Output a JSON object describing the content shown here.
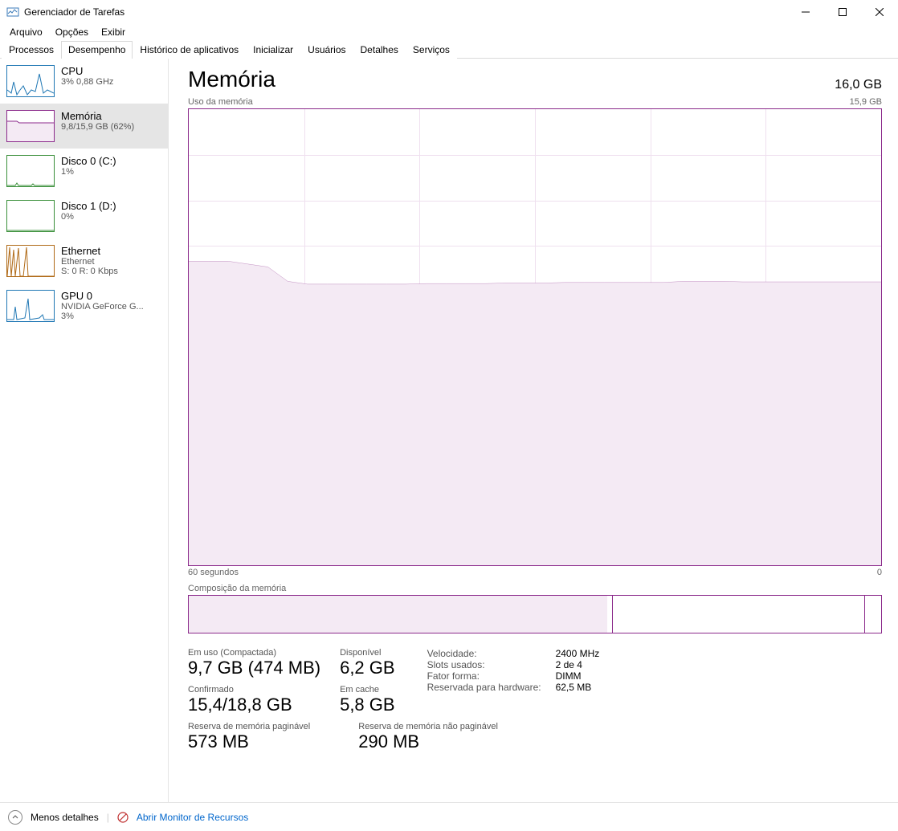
{
  "window": {
    "title": "Gerenciador de Tarefas"
  },
  "menu": {
    "file": "Arquivo",
    "options": "Opções",
    "view": "Exibir"
  },
  "tabs": {
    "processes": "Processos",
    "performance": "Desempenho",
    "app_history": "Histórico de aplicativos",
    "startup": "Inicializar",
    "users": "Usuários",
    "details": "Detalhes",
    "services": "Serviços"
  },
  "sidebar": [
    {
      "id": "cpu",
      "title": "CPU",
      "sub": "3% 0,88 GHz",
      "color": "#1f77b4",
      "selected": false
    },
    {
      "id": "memory",
      "title": "Memória",
      "sub": "9,8/15,9 GB (62%)",
      "color": "#8b2a8b",
      "selected": true
    },
    {
      "id": "disk0",
      "title": "Disco 0 (C:)",
      "sub": "1%",
      "color": "#3a8f3a",
      "selected": false
    },
    {
      "id": "disk1",
      "title": "Disco 1 (D:)",
      "sub": "0%",
      "color": "#3a8f3a",
      "selected": false
    },
    {
      "id": "ethernet",
      "title": "Ethernet",
      "sub": "Ethernet",
      "sub2": "S: 0 R: 0 Kbps",
      "color": "#b06a17",
      "selected": false
    },
    {
      "id": "gpu",
      "title": "GPU 0",
      "sub": "NVIDIA GeForce G...",
      "sub2": "3%",
      "color": "#1f77b4",
      "selected": false
    }
  ],
  "main": {
    "title": "Memória",
    "total": "16,0 GB",
    "chart": {
      "label_top_left": "Uso da memória",
      "label_top_right": "15,9 GB",
      "label_bottom_left": "60 segundos",
      "label_bottom_right": "0",
      "line_color": "#8b2a8b",
      "fill_color": "#f4eaf4",
      "grid_color": "#efe0ef",
      "h_divisions": 10,
      "v_divisions": 6,
      "ylim_max": 15.9,
      "data_points": [
        10.6,
        10.6,
        10.6,
        10.5,
        10.4,
        9.9,
        9.8,
        9.8,
        9.8,
        9.8,
        9.8,
        9.8,
        9.82,
        9.82,
        9.82,
        9.82,
        9.84,
        9.84,
        9.84,
        9.86,
        9.86,
        9.86,
        9.86,
        9.86,
        9.86,
        9.9,
        9.9,
        9.9,
        9.88,
        9.88,
        9.88,
        9.88,
        9.88,
        9.88,
        9.88,
        9.88
      ]
    },
    "composition": {
      "label": "Composição da memória",
      "segments": [
        {
          "width_pct": 60.6,
          "fill": "#f4eaf4",
          "border_right": "#ffffff"
        },
        {
          "width_pct": 0.6,
          "fill": "#ffffff",
          "border_right": "#8b2a8b"
        },
        {
          "width_pct": 36.5,
          "fill": "#ffffff",
          "border_right": "#8b2a8b"
        },
        {
          "width_pct": 2.3,
          "fill": "#ffffff",
          "border_right": "transparent"
        }
      ]
    },
    "stats": {
      "in_use_label": "Em uso (Compactada)",
      "in_use_value": "9,7 GB (474 MB)",
      "available_label": "Disponível",
      "available_value": "6,2 GB",
      "committed_label": "Confirmado",
      "committed_value": "15,4/18,8 GB",
      "cached_label": "Em cache",
      "cached_value": "5,8 GB",
      "paged_label": "Reserva de memória paginável",
      "paged_value": "573 MB",
      "nonpaged_label": "Reserva de memória não paginável",
      "nonpaged_value": "290 MB"
    },
    "specs": {
      "speed_k": "Velocidade:",
      "speed_v": "2400 MHz",
      "slots_k": "Slots usados:",
      "slots_v": "2 de 4",
      "form_k": "Fator forma:",
      "form_v": "DIMM",
      "reserved_k": "Reservada para hardware:",
      "reserved_v": "62,5 MB"
    }
  },
  "footer": {
    "fewer_details": "Menos detalhes",
    "resource_monitor": "Abrir Monitor de Recursos"
  }
}
